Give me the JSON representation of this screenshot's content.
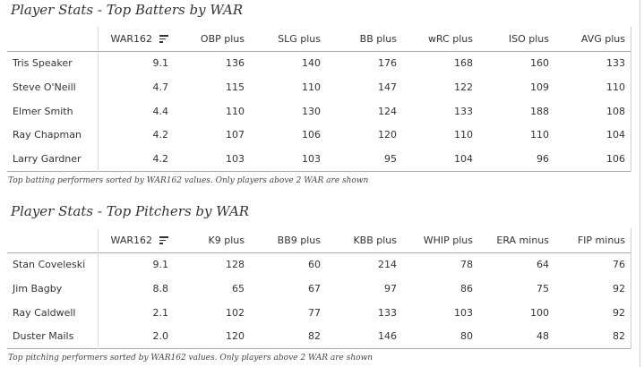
{
  "batters": {
    "title": "Player Stats - Top Batters by WAR",
    "columns": [
      "",
      "WAR162",
      "OBP plus",
      "SLG plus",
      "BB plus",
      "wRC plus",
      "ISO plus",
      "AVG plus"
    ],
    "rows": [
      [
        "Tris Speaker",
        "9.1",
        "136",
        "140",
        "176",
        "168",
        "160",
        "133"
      ],
      [
        "Steve O'Neill",
        "4.7",
        "115",
        "110",
        "147",
        "122",
        "109",
        "110"
      ],
      [
        "Elmer Smith",
        "4.4",
        "110",
        "130",
        "124",
        "133",
        "188",
        "108"
      ],
      [
        "Ray Chapman",
        "4.2",
        "107",
        "106",
        "120",
        "110",
        "110",
        "104"
      ],
      [
        "Larry Gardner",
        "4.2",
        "103",
        "103",
        "95",
        "104",
        "96",
        "106"
      ]
    ],
    "caption": "Top batting performers sorted by WAR162 values. Only players above 2 WAR are shown"
  },
  "pitchers": {
    "title": "Player Stats - Top Pitchers by WAR",
    "columns": [
      "",
      "WAR162",
      "K9 plus",
      "BB9 plus",
      "KBB plus",
      "WHIP plus",
      "ERA minus",
      "FIP minus"
    ],
    "rows": [
      [
        "Stan Coveleski",
        "9.1",
        "128",
        "60",
        "214",
        "78",
        "64",
        "76"
      ],
      [
        "Jim Bagby",
        "8.8",
        "65",
        "67",
        "97",
        "86",
        "75",
        "92"
      ],
      [
        "Ray Caldwell",
        "2.1",
        "102",
        "77",
        "133",
        "103",
        "100",
        "92"
      ],
      [
        "Duster Mails",
        "2.0",
        "120",
        "82",
        "146",
        "80",
        "48",
        "82"
      ]
    ],
    "caption": "Top pitching performers sorted by WAR162 values. Only players above 2 WAR are shown"
  },
  "icons": {
    "sort": "sort-descending-icon"
  }
}
